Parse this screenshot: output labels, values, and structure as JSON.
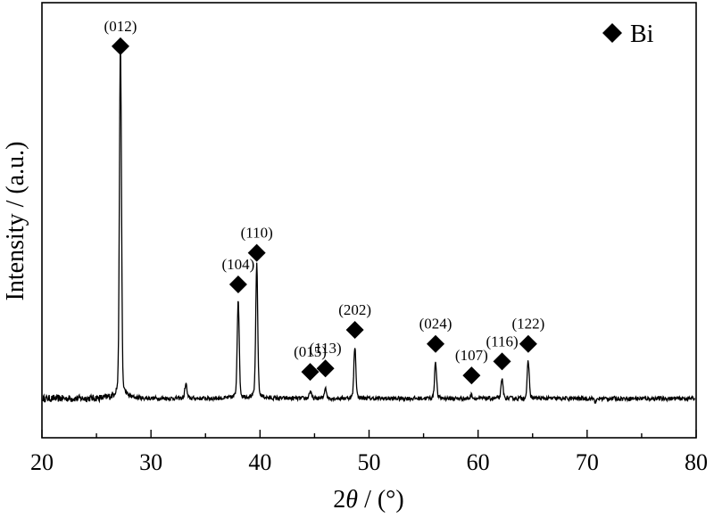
{
  "chart_data": {
    "type": "line",
    "title": "",
    "xlabel_prefix": "2",
    "xlabel_symbol": "θ",
    "xlabel_suffix": " / (°)",
    "ylabel": "Intensity / (a.u.)",
    "xlim": [
      20,
      80
    ],
    "ylim": [
      0,
      100
    ],
    "x_ticks": [
      20,
      30,
      40,
      50,
      60,
      70,
      80
    ],
    "show_y_ticks": false,
    "grid": false,
    "legend": {
      "position": "top-right",
      "entries": [
        {
          "marker": "diamond",
          "label": "Bi"
        }
      ]
    },
    "baseline": 4,
    "peaks": [
      {
        "x": 27.2,
        "height": 99,
        "label": "(012)"
      },
      {
        "x": 33.2,
        "height": 8,
        "label": ""
      },
      {
        "x": 38.0,
        "height": 31,
        "label": "(104)"
      },
      {
        "x": 39.7,
        "height": 40,
        "label": "(110)"
      },
      {
        "x": 44.6,
        "height": 6,
        "label": "(015)"
      },
      {
        "x": 46.0,
        "height": 7,
        "label": "(113)"
      },
      {
        "x": 48.7,
        "height": 18,
        "label": "(202)"
      },
      {
        "x": 56.1,
        "height": 14,
        "label": "(024)"
      },
      {
        "x": 59.4,
        "height": 5,
        "label": "(107)"
      },
      {
        "x": 62.2,
        "height": 9,
        "label": "(116)"
      },
      {
        "x": 64.6,
        "height": 14,
        "label": "(122)"
      },
      {
        "x": 70.8,
        "height": 3,
        "label": ""
      }
    ],
    "marker_color": "#000000",
    "line_color": "#000000"
  }
}
